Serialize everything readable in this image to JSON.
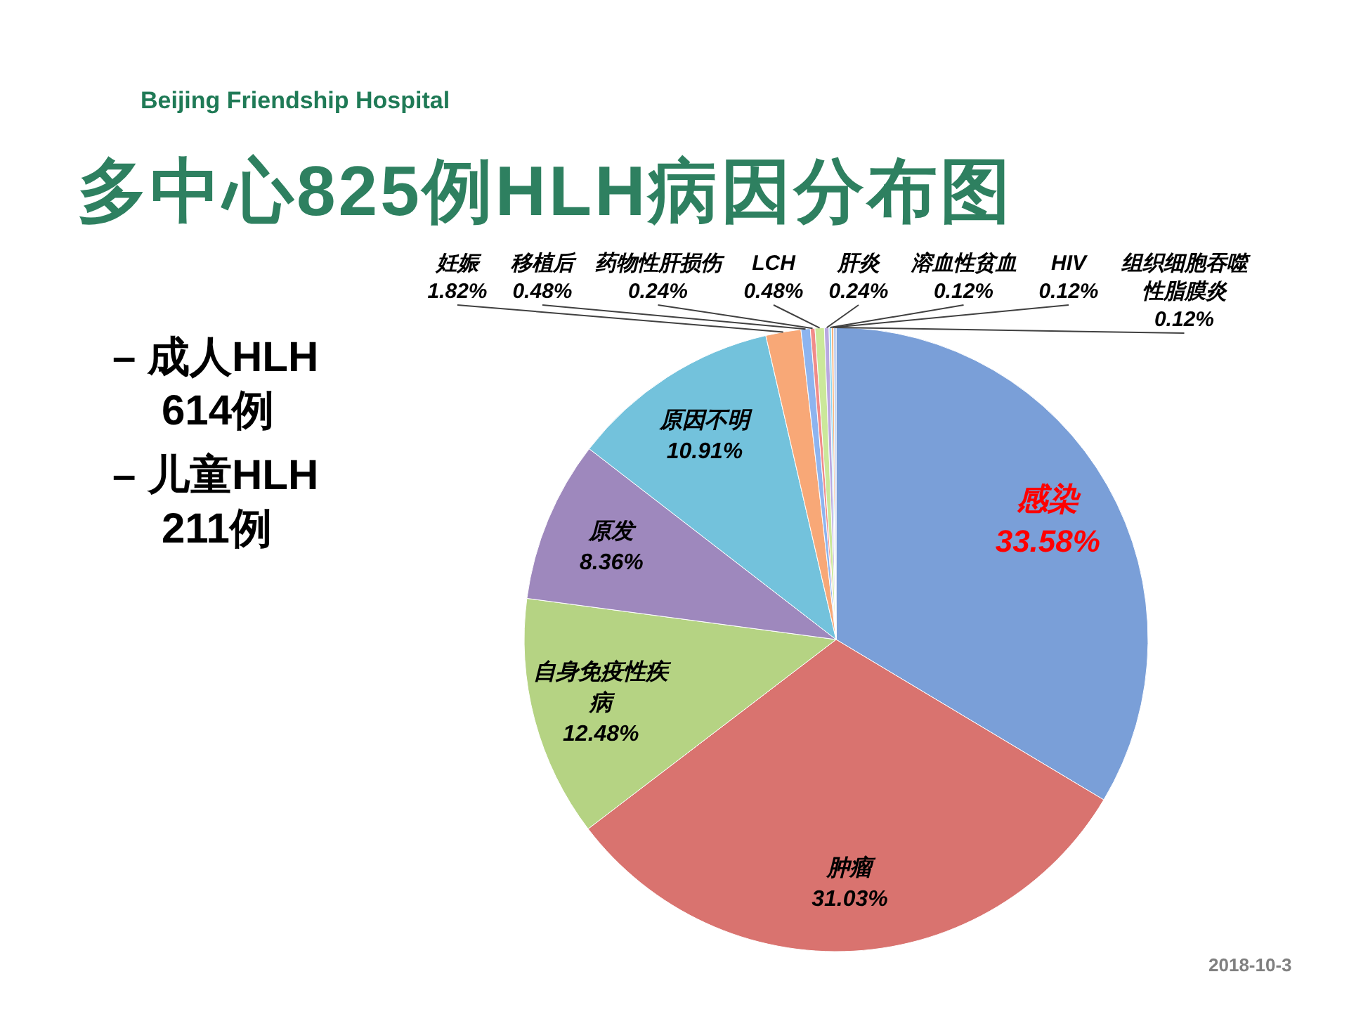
{
  "chart_data": {
    "type": "pie",
    "title": "多中心825例HLH病因分布图",
    "categories": [
      "感染",
      "肿瘤",
      "自身免疫性疾病",
      "原发",
      "原因不明",
      "妊娠",
      "移植后",
      "药物性肝损伤",
      "LCH",
      "肝炎",
      "溶血性贫血",
      "HIV",
      "组织细胞吞噬性脂膜炎"
    ],
    "values": [
      33.58,
      31.03,
      12.48,
      8.36,
      10.91,
      1.82,
      0.48,
      0.24,
      0.48,
      0.24,
      0.12,
      0.12,
      0.12
    ],
    "value_labels": [
      "33.58%",
      "31.03%",
      "12.48%",
      "8.36%",
      "10.91%",
      "1.82%",
      "0.48%",
      "0.24%",
      "0.48%",
      "0.24%",
      "0.12%",
      "0.12%",
      "0.12%"
    ],
    "colors": [
      "#7a9fd8",
      "#d9736f",
      "#b5d383",
      "#9e88bd",
      "#73c2dc",
      "#f8a877",
      "#8db4ef",
      "#f18c89",
      "#cbe89a",
      "#b9a8e0",
      "#8cd8f0",
      "#f8b37c",
      "#a9c0ec"
    ],
    "annotations": [
      "Beijing Friendship Hospital",
      "– 成人HLH 614例",
      "– 儿童HLH 211例",
      "2018-10-3"
    ]
  }
}
